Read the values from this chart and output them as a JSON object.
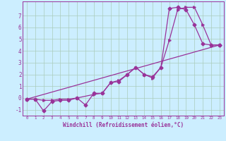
{
  "title": "",
  "xlabel": "Windchill (Refroidissement éolien,°C)",
  "bg_color": "#cceeff",
  "line_color": "#993399",
  "grid_color": "#aaccbb",
  "xlim": [
    -0.5,
    23.5
  ],
  "ylim": [
    -1.5,
    8.2
  ],
  "xticks": [
    0,
    1,
    2,
    3,
    4,
    5,
    6,
    7,
    8,
    9,
    10,
    11,
    12,
    13,
    14,
    15,
    16,
    17,
    18,
    19,
    20,
    21,
    22,
    23
  ],
  "yticks": [
    -1,
    0,
    1,
    2,
    3,
    4,
    5,
    6,
    7
  ],
  "series1_x": [
    0,
    1,
    2,
    3,
    4,
    5,
    6,
    7,
    8,
    9,
    10,
    11,
    12,
    13,
    14,
    15,
    16,
    17,
    18,
    19,
    20,
    21,
    22,
    23
  ],
  "series1_y": [
    -0.1,
    -0.1,
    -1.1,
    -0.3,
    -0.2,
    -0.2,
    0.0,
    -0.6,
    0.4,
    0.4,
    1.3,
    1.4,
    2.0,
    2.6,
    2.0,
    1.8,
    2.6,
    7.6,
    7.7,
    7.5,
    6.2,
    4.6,
    4.5,
    4.5
  ],
  "series2_x": [
    0,
    1,
    2,
    3,
    4,
    5,
    6,
    8,
    9,
    10,
    11,
    12,
    13,
    14,
    15,
    16,
    17,
    18,
    19,
    20,
    21,
    22,
    23
  ],
  "series2_y": [
    -0.1,
    -0.1,
    -0.2,
    -0.2,
    -0.1,
    -0.1,
    0.0,
    0.3,
    0.4,
    1.3,
    1.5,
    2.0,
    2.6,
    2.0,
    1.7,
    2.6,
    4.9,
    7.5,
    7.7,
    7.7,
    6.2,
    4.5,
    4.5
  ],
  "series3_x": [
    0,
    23
  ],
  "series3_y": [
    -0.1,
    4.5
  ]
}
